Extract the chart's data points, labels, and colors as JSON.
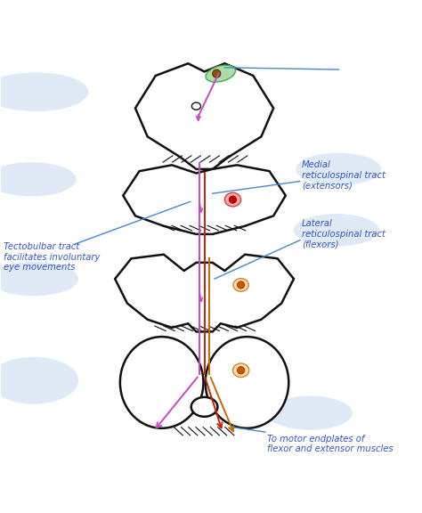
{
  "bg_color": "#ffffff",
  "fig_width": 4.74,
  "fig_height": 5.76,
  "dpi": 100,
  "labels": {
    "left_main": "Tectobulbar tract\nfacilitates involuntary\neye movements",
    "right_medial": "Medial\nreticulospinal tract\n(extensors)",
    "right_lateral": "Lateral\nreticulospinal tract\n(flexors)",
    "bottom_right": "To motor endplates of\nflexor and extensor muscles"
  },
  "label_color": "#3355cc",
  "tract_colors": {
    "purple": "#cc44cc",
    "red": "#cc2200",
    "orange": "#cc6600",
    "blue": "#4488cc",
    "green": "#44aa44"
  },
  "shadow_color": "#c8d8f0",
  "outline_color": "#111111"
}
